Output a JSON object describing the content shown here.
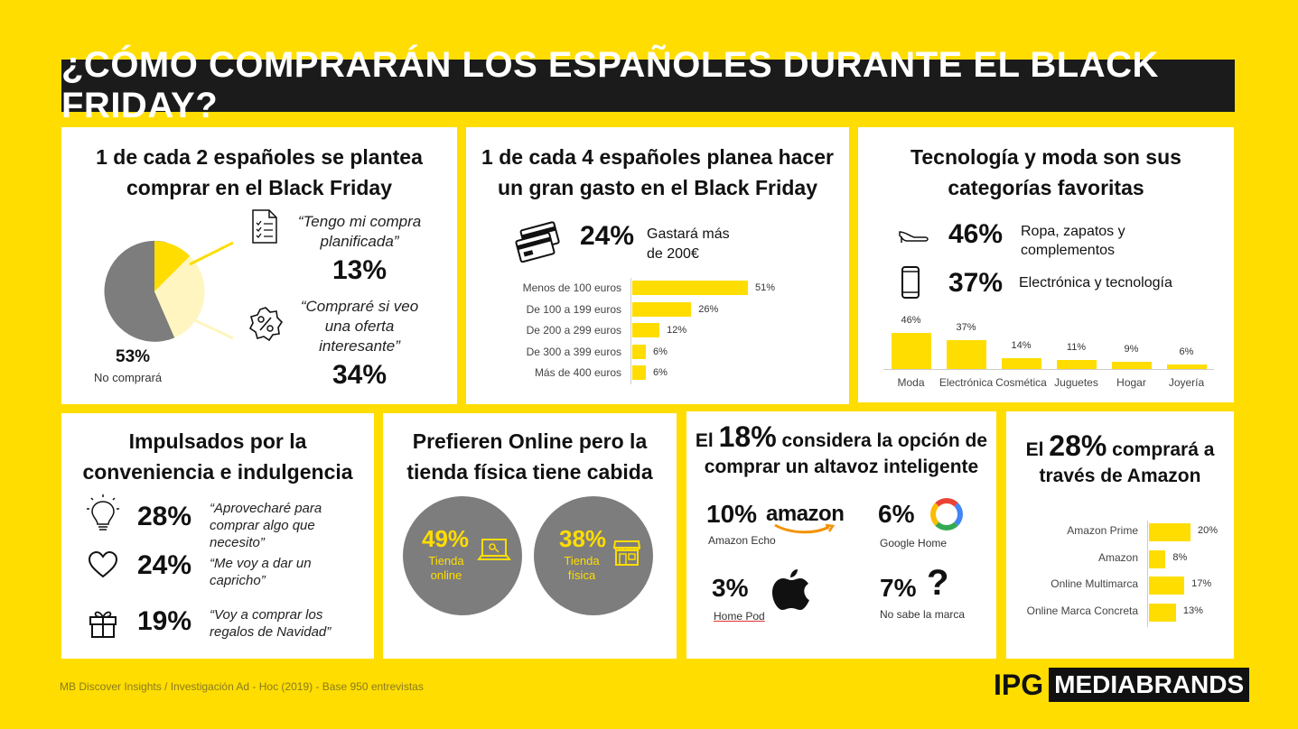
{
  "title": "¿CÓMO COMPRARÁN LOS ESPAÑOLES DURANTE EL BLACK FRIDAY?",
  "p1": {
    "title_l1": "1 de cada 2 españoles se plantea",
    "title_l2": "comprar en el Black Friday",
    "q1": "“Tengo mi compra",
    "q1b": "planificada”",
    "v1": "13%",
    "q2": "“Compraré si veo",
    "q2b": "una oferta",
    "q2c": "interesante”",
    "v2": "34%",
    "no_pct": "53%",
    "no_label": "No comprará",
    "pie": [
      {
        "label": "planificada",
        "value": 13
      },
      {
        "label": "oferta",
        "value": 34
      },
      {
        "label": "No comprará",
        "value": 53
      }
    ]
  },
  "p2": {
    "title_l1": "1 de cada 4 españoles planea hacer",
    "title_l2": "un gran gasto en el Black Friday",
    "pct": "24%",
    "desc1": "Gastará más",
    "desc2": "de 200€"
  },
  "p3": {
    "title_l1": "Tecnología y moda son sus",
    "title_l2": "categorías favoritas",
    "pct1": "46%",
    "lab1a": "Ropa, zapatos y",
    "lab1b": "complementos",
    "pct2": "37%",
    "lab2": "Electrónica y tecnología"
  },
  "p4": {
    "title_l1": "Impulsados por la",
    "title_l2": "conveniencia e indulgencia",
    "rows": [
      {
        "pct": "28%",
        "q1": "“Aprovecharé para",
        "q2": "comprar algo que",
        "q3": "necesito”"
      },
      {
        "pct": "24%",
        "q1": "“Me voy a dar un",
        "q2": "capricho”",
        "q3": ""
      },
      {
        "pct": "19%",
        "q1": "“Voy a comprar los",
        "q2": "regalos de Navidad”",
        "q3": ""
      }
    ]
  },
  "p5": {
    "title_l1": "Prefieren Online pero la",
    "title_l2": "tienda física tiene cabida",
    "c1_pct": "49%",
    "c1_l1": "Tienda",
    "c1_l2": "online",
    "c2_pct": "38%",
    "c2_l1": "Tienda",
    "c2_l2": "física"
  },
  "p6": {
    "title_pre": "El",
    "title_pct": "18%",
    "title_post": "considera la opción de",
    "title_l2": "comprar un altavoz inteligente",
    "items": [
      {
        "pct": "10%",
        "brand": "amazon",
        "label": "Amazon Echo"
      },
      {
        "pct": "6%",
        "brand": "G",
        "label": "Google Home"
      },
      {
        "pct": "3%",
        "brand": "apple",
        "label": "Home Pod"
      },
      {
        "pct": "7%",
        "brand": "?",
        "label": "No sabe la marca"
      }
    ]
  },
  "p7": {
    "title_pre": "El",
    "title_pct": "28%",
    "title_post": "comprará a",
    "title_l2": "través de Amazon"
  },
  "footer": "MB Discover Insights / Investigación Ad - Hoc (2019) - Base 950 entrevistas",
  "logo": {
    "ipg": "IPG",
    "mb": "MEDIABRANDS"
  },
  "colors": {
    "accent": "#FFDD00",
    "dark": "#1b1b1b",
    "grey": "#7d7d7d"
  },
  "chart_data": [
    {
      "type": "bar",
      "orientation": "horizontal",
      "categories": [
        "Menos de 100 euros",
        "De 100 a 199 euros",
        "De 200 a 299 euros",
        "De 300 a 399 euros",
        "Más de 400 euros"
      ],
      "values": [
        51,
        26,
        12,
        6,
        6
      ],
      "labels": [
        "51%",
        "26%",
        "12%",
        "6%",
        "6%"
      ]
    },
    {
      "type": "bar",
      "orientation": "vertical",
      "categories": [
        "Moda",
        "Electrónica",
        "Cosmética",
        "Juguetes",
        "Hogar",
        "Joyería"
      ],
      "values": [
        46,
        37,
        14,
        11,
        9,
        6
      ],
      "labels": [
        "46%",
        "37%",
        "14%",
        "11%",
        "9%",
        "6%"
      ]
    },
    {
      "type": "bar",
      "orientation": "horizontal",
      "categories": [
        "Amazon Prime",
        "Amazon",
        "Online Multimarca",
        "Online Marca Concreta"
      ],
      "values": [
        20,
        8,
        17,
        13
      ],
      "labels": [
        "20%",
        "8%",
        "17%",
        "13%"
      ]
    }
  ]
}
